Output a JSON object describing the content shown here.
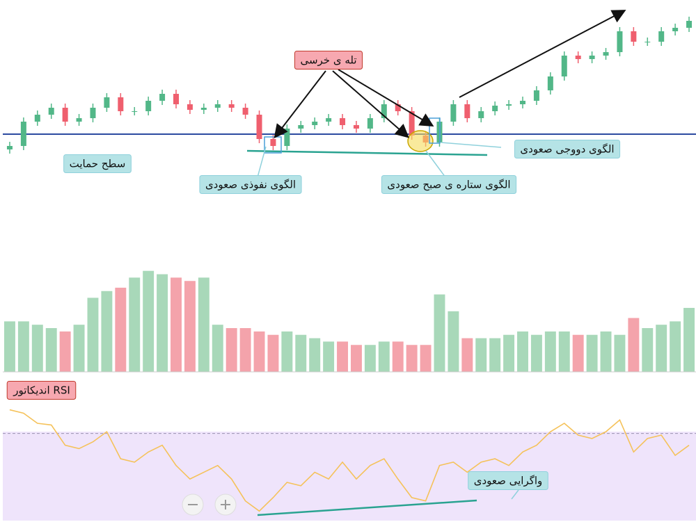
{
  "chart_data": [
    {
      "type": "candlestick",
      "up_color": "#52b788",
      "down_color": "#ef5f6e",
      "ylim": [
        0,
        250
      ],
      "support_level": 57,
      "open": [
        35,
        40,
        75,
        85,
        95,
        75,
        80,
        95,
        110,
        90,
        90,
        105,
        115,
        100,
        92,
        95,
        100,
        95,
        85,
        50,
        40,
        65,
        70,
        75,
        80,
        70,
        65,
        80,
        100,
        90,
        55,
        45,
        75,
        100,
        80,
        90,
        98,
        100,
        105,
        120,
        140,
        170,
        165,
        170,
        175,
        205,
        190,
        190,
        205,
        210
      ],
      "high": [
        46,
        81,
        91,
        101,
        101,
        86,
        101,
        116,
        116,
        96,
        111,
        121,
        121,
        106,
        101,
        106,
        106,
        101,
        91,
        56,
        71,
        76,
        81,
        86,
        86,
        76,
        86,
        106,
        106,
        96,
        61,
        81,
        106,
        106,
        96,
        104,
        106,
        111,
        126,
        146,
        176,
        176,
        176,
        181,
        211,
        211,
        196,
        211,
        216,
        226
      ],
      "low": [
        29,
        34,
        69,
        79,
        69,
        69,
        74,
        89,
        84,
        84,
        84,
        99,
        94,
        86,
        86,
        89,
        89,
        79,
        44,
        34,
        34,
        59,
        64,
        69,
        64,
        59,
        59,
        74,
        84,
        49,
        39,
        39,
        69,
        74,
        74,
        84,
        92,
        94,
        99,
        114,
        134,
        159,
        159,
        164,
        169,
        184,
        184,
        184,
        199,
        204
      ],
      "close": [
        40,
        75,
        85,
        95,
        75,
        80,
        95,
        110,
        90,
        90,
        105,
        115,
        100,
        92,
        95,
        100,
        95,
        85,
        50,
        40,
        65,
        70,
        75,
        80,
        70,
        65,
        80,
        100,
        90,
        55,
        45,
        75,
        100,
        80,
        90,
        98,
        100,
        105,
        120,
        140,
        170,
        165,
        170,
        175,
        205,
        190,
        190,
        205,
        210,
        220
      ],
      "annotations": [
        "تله ی خرسی",
        "سطح حمایت",
        "الگوی نفوذی صعودی",
        "الگوی ستاره ی صبح صعودی",
        "الگوی دووجی صعودی"
      ]
    },
    {
      "type": "bar",
      "up_color": "#a8d8b9",
      "down_color": "#f4a3ab",
      "ylim": [
        0,
        160
      ],
      "values": [
        75,
        75,
        70,
        65,
        60,
        70,
        110,
        120,
        125,
        140,
        150,
        145,
        140,
        135,
        140,
        70,
        65,
        65,
        60,
        55,
        60,
        55,
        50,
        45,
        45,
        40,
        40,
        45,
        45,
        40,
        40,
        115,
        90,
        50,
        50,
        50,
        55,
        60,
        55,
        60,
        60,
        55,
        55,
        60,
        55,
        80,
        65,
        70,
        75,
        95
      ]
    },
    {
      "type": "line",
      "title": "اندیکاتور RSI",
      "color": "#f5c25a",
      "ylim": [
        20,
        90
      ],
      "overbought": 70,
      "values": [
        84,
        82,
        76,
        75,
        63,
        61,
        65,
        71,
        55,
        53,
        59,
        63,
        51,
        43,
        47,
        51,
        43,
        30,
        24,
        32,
        41,
        39,
        47,
        43,
        53,
        43,
        51,
        55,
        43,
        32,
        30,
        51,
        53,
        47,
        53,
        55,
        51,
        59,
        63,
        71,
        76,
        69,
        67,
        71,
        78,
        59,
        67,
        69,
        57,
        63
      ],
      "annotations": [
        "واگرایی صعودی"
      ]
    }
  ]
}
